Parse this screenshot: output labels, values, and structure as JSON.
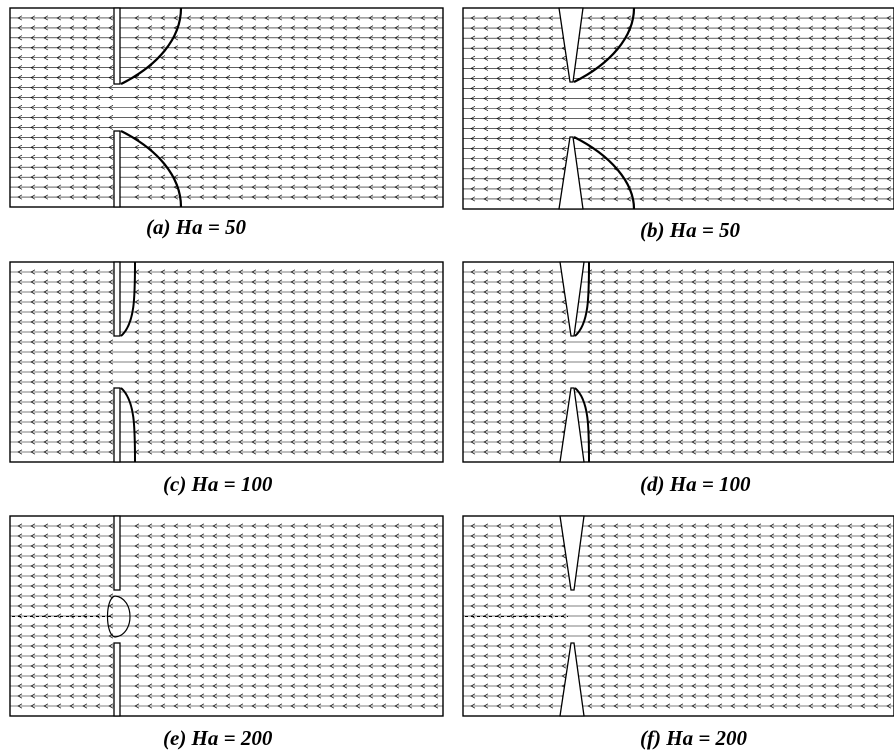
{
  "figure": {
    "panels": [
      {
        "id": "a",
        "caption": "(a) Ha = 50",
        "geometry": "straight",
        "ha": 50
      },
      {
        "id": "b",
        "caption": "(b) Ha = 50",
        "geometry": "tapered",
        "ha": 50
      },
      {
        "id": "c",
        "caption": "(c) Ha = 100",
        "geometry": "straight",
        "ha": 100
      },
      {
        "id": "d",
        "caption": "(d) Ha = 100",
        "geometry": "tapered",
        "ha": 100
      },
      {
        "id": "e",
        "caption": "(e) Ha = 200",
        "geometry": "straight",
        "ha": 200
      },
      {
        "id": "f",
        "caption": "(f) Ha = 200",
        "geometry": "tapered",
        "ha": 200
      }
    ],
    "arrow_direction": "left",
    "stroke_color": "#000000",
    "background_color": "#ffffff"
  }
}
